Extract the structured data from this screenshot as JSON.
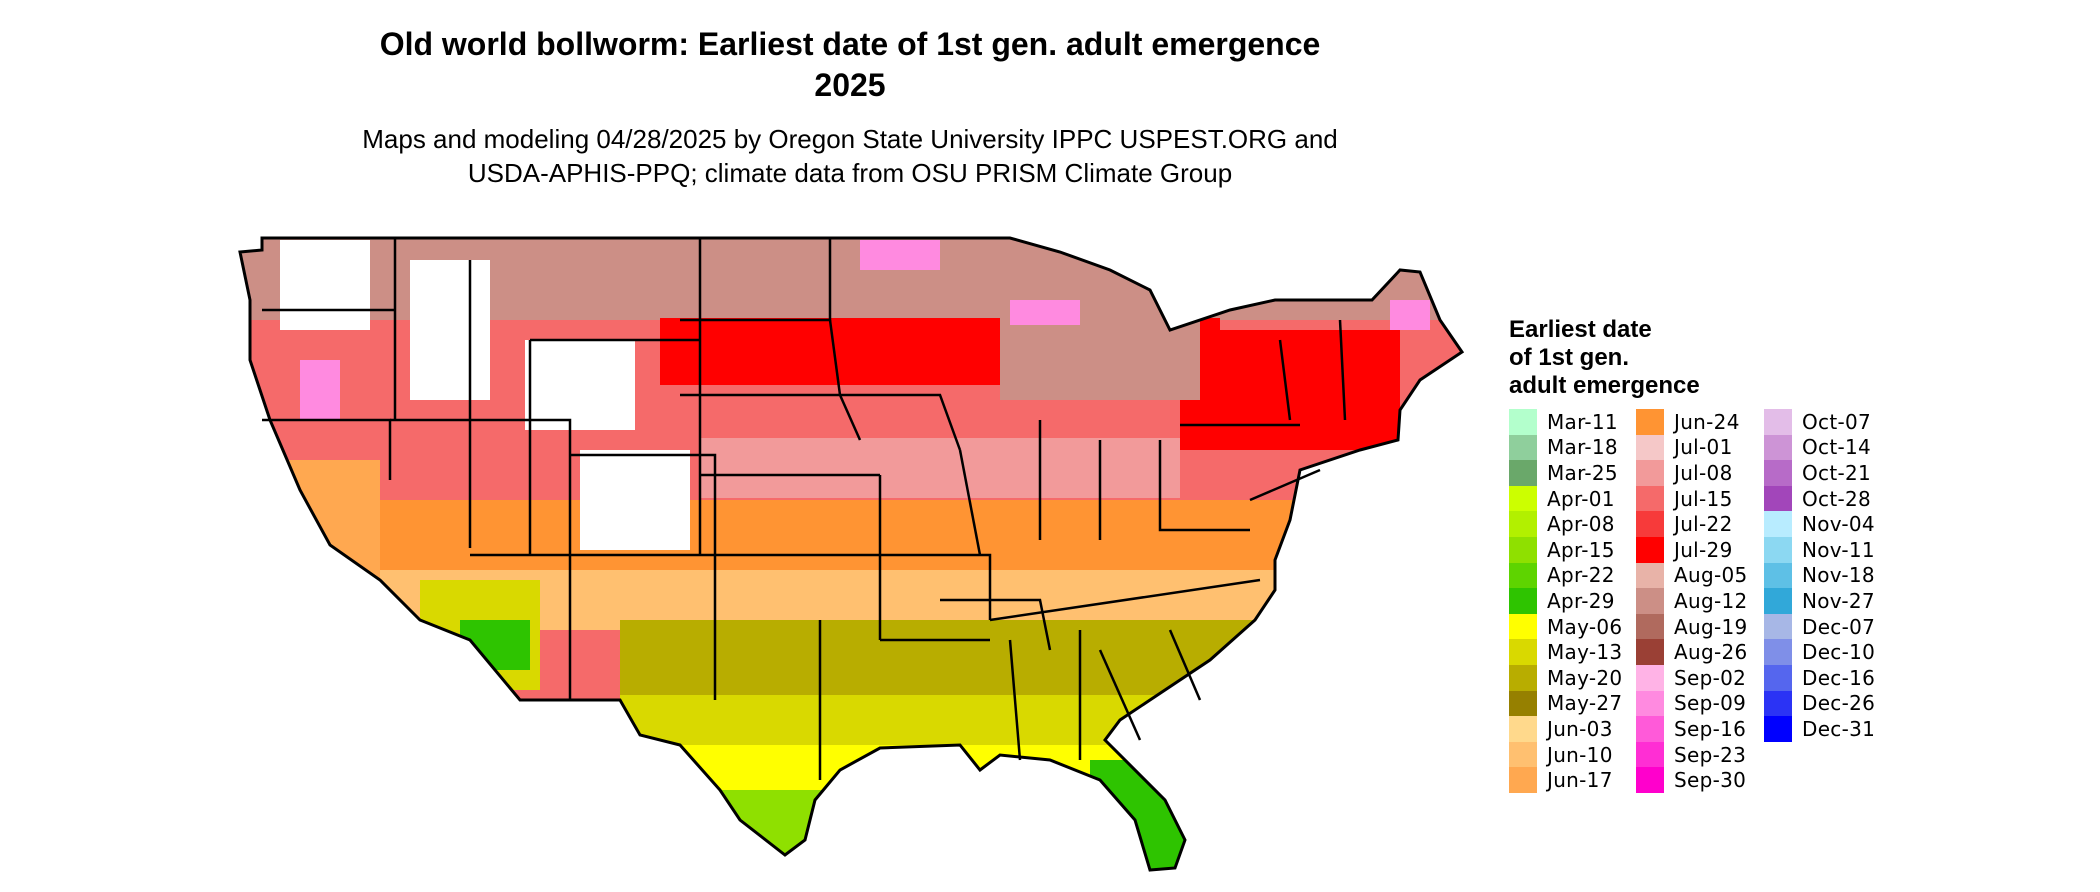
{
  "title_line1": "Old world bollworm: Earliest date of 1st gen. adult emergence",
  "title_line2": "2025",
  "subtitle_line1": "Maps and modeling 04/28/2025 by Oregon State University IPPC USPEST.ORG and",
  "subtitle_line2": "USDA-APHIS-PPQ; climate data from OSU PRISM Climate Group",
  "legend": {
    "title_lines": [
      "Earliest date",
      "of 1st gen.",
      "adult emergence"
    ],
    "columns": [
      [
        {
          "label": "Mar-11",
          "color": "#b3ffcc"
        },
        {
          "label": "Mar-18",
          "color": "#8fcf9c"
        },
        {
          "label": "Mar-25",
          "color": "#6aa86a"
        },
        {
          "label": "Apr-01",
          "color": "#ccff00"
        },
        {
          "label": "Apr-08",
          "color": "#b2f000"
        },
        {
          "label": "Apr-15",
          "color": "#8fe000"
        },
        {
          "label": "Apr-22",
          "color": "#5ed400"
        },
        {
          "label": "Apr-29",
          "color": "#2ec400"
        },
        {
          "label": "May-06",
          "color": "#ffff00"
        },
        {
          "label": "May-13",
          "color": "#d9d900"
        },
        {
          "label": "May-20",
          "color": "#b8ad00"
        },
        {
          "label": "May-27",
          "color": "#968000"
        },
        {
          "label": "Jun-03",
          "color": "#ffd98c"
        },
        {
          "label": "Jun-10",
          "color": "#ffc070"
        },
        {
          "label": "Jun-17",
          "color": "#ffa850"
        }
      ],
      [
        {
          "label": "Jun-24",
          "color": "#ff9433"
        },
        {
          "label": "Jul-01",
          "color": "#f5c8c8"
        },
        {
          "label": "Jul-08",
          "color": "#f29a9a"
        },
        {
          "label": "Jul-15",
          "color": "#f56a6a"
        },
        {
          "label": "Jul-22",
          "color": "#f73a3a"
        },
        {
          "label": "Jul-29",
          "color": "#ff0000"
        },
        {
          "label": "Aug-05",
          "color": "#e8b3a8"
        },
        {
          "label": "Aug-12",
          "color": "#cc8f86"
        },
        {
          "label": "Aug-19",
          "color": "#b06a5e"
        },
        {
          "label": "Aug-26",
          "color": "#9a4035"
        },
        {
          "label": "Sep-02",
          "color": "#ffb3e6"
        },
        {
          "label": "Sep-09",
          "color": "#ff8ae0"
        },
        {
          "label": "Sep-16",
          "color": "#ff5ad9"
        },
        {
          "label": "Sep-23",
          "color": "#ff2ed4"
        },
        {
          "label": "Sep-30",
          "color": "#ff00cc"
        }
      ],
      [
        {
          "label": "Oct-07",
          "color": "#e3bde8"
        },
        {
          "label": "Oct-14",
          "color": "#cd94d6"
        },
        {
          "label": "Oct-21",
          "color": "#b76bc8"
        },
        {
          "label": "Oct-28",
          "color": "#a246ba"
        },
        {
          "label": "Nov-04",
          "color": "#b8ecff"
        },
        {
          "label": "Nov-11",
          "color": "#8cd8f2"
        },
        {
          "label": "Nov-18",
          "color": "#5ec0e6"
        },
        {
          "label": "Nov-27",
          "color": "#31a8d9"
        },
        {
          "label": "Dec-07",
          "color": "#a7b7e6"
        },
        {
          "label": "Dec-10",
          "color": "#7f8fe8"
        },
        {
          "label": "Dec-16",
          "color": "#5566ee"
        },
        {
          "label": "Dec-26",
          "color": "#2b33f5"
        },
        {
          "label": "Dec-31",
          "color": "#0000ff"
        }
      ]
    ]
  }
}
